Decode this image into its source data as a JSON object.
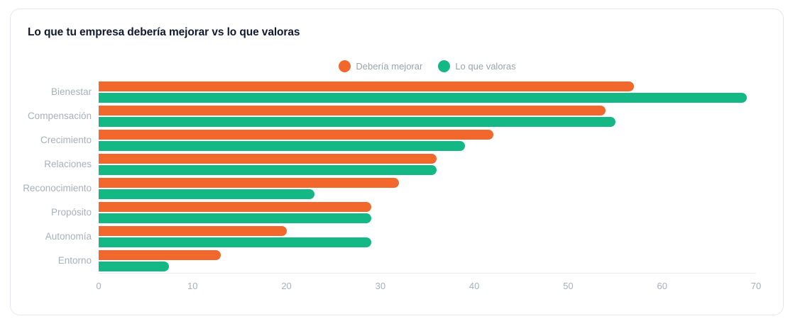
{
  "card": {
    "title": "Lo que tu empresa debería mejorar vs lo que valoras"
  },
  "legend": [
    {
      "label": "Debería mejorar",
      "color": "#f2672c"
    },
    {
      "label": "Lo que valoras",
      "color": "#14b885"
    }
  ],
  "chart_data": {
    "type": "bar",
    "orientation": "horizontal",
    "title": "Lo que tu empresa debería mejorar vs lo que valoras",
    "categories": [
      "Bienestar",
      "Compensación",
      "Crecimiento",
      "Relaciones",
      "Reconocimiento",
      "Propósito",
      "Autonomía",
      "Entorno"
    ],
    "series": [
      {
        "name": "Debería mejorar",
        "color": "#f2672c",
        "values": [
          57,
          54,
          42,
          36,
          32,
          29,
          20,
          13
        ]
      },
      {
        "name": "Lo que valoras",
        "color": "#14b885",
        "values": [
          69,
          55,
          39,
          36,
          23,
          29,
          29,
          7.5
        ]
      }
    ],
    "xlabel": "",
    "ylabel": "",
    "xlim": [
      0,
      70
    ],
    "xticks": [
      0,
      10,
      20,
      30,
      40,
      50,
      60,
      70
    ],
    "grid": false,
    "legend_position": "top-center"
  },
  "colors": {
    "background": "#ffffff",
    "card_border": "#e4e8ee",
    "title_text": "#10192f",
    "category_text": "#a9b0bd",
    "tick_text": "#a8afbc",
    "legend_text": "#9aa3af",
    "axis_line": "#e7eaf0"
  }
}
